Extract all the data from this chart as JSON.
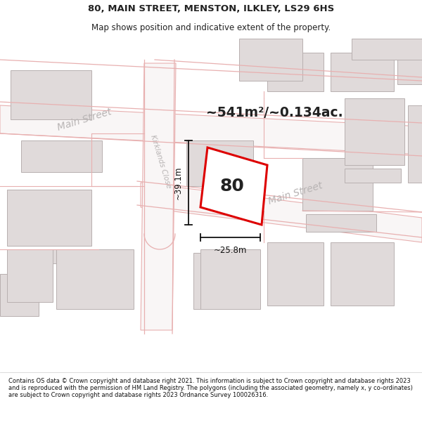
{
  "title_line1": "80, MAIN STREET, MENSTON, ILKLEY, LS29 6HS",
  "title_line2": "Map shows position and indicative extent of the property.",
  "area_text": "~541m²/~0.134ac.",
  "property_number": "80",
  "dim_width": "~25.8m",
  "dim_height": "~39.1m",
  "street_label_upper": "Main Street",
  "street_label_lower": "Main Street",
  "street_label_side": "Kirklands Close",
  "footer_text": "Contains OS data © Crown copyright and database right 2021. This information is subject to Crown copyright and database rights 2023 and is reproduced with the permission of HM Land Registry. The polygons (including the associated geometry, namely x, y co-ordinates) are subject to Crown copyright and database rights 2023 Ordnance Survey 100026316.",
  "map_bg": "#f9f6f6",
  "building_fill": "#e0dada",
  "building_edge": "#b8b0b0",
  "road_line_color": "#e8b0b0",
  "highlight_color": "#dd0000",
  "highlight_fill": "#ffffff",
  "text_color": "#222222",
  "street_text_color": "#b8b4b4",
  "footer_color": "#111111",
  "dim_color": "#111111"
}
